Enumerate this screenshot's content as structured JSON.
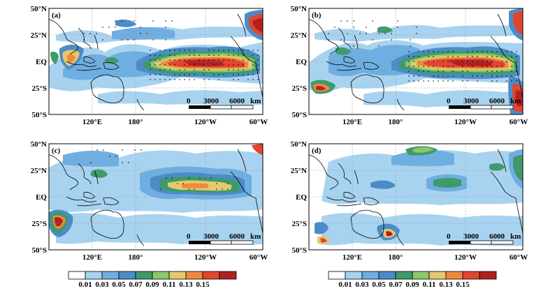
{
  "figure": {
    "panels": [
      {
        "label": "(a)"
      },
      {
        "label": "(b)"
      },
      {
        "label": "(c)"
      },
      {
        "label": "(d)"
      }
    ],
    "lat_ticks": [
      "50°N",
      "25°N",
      "EQ",
      "25°S",
      "50°S"
    ],
    "lon_ticks": [
      "120°E",
      "180°",
      "120°W",
      "60°W"
    ],
    "scale_bar": {
      "labels": [
        "0",
        "3000",
        "6000"
      ],
      "unit": "km"
    },
    "colorbar": {
      "colors": [
        "#ffffff",
        "#a8d3f0",
        "#6faee0",
        "#4b8cc8",
        "#3e9a6a",
        "#8cc76a",
        "#e6c86e",
        "#ef8a3c",
        "#e0452e",
        "#b0201e"
      ],
      "labels": [
        "0.01",
        "0.03",
        "0.05",
        "0.07",
        "0.09",
        "0.11",
        "0.13",
        "0.15"
      ]
    }
  }
}
